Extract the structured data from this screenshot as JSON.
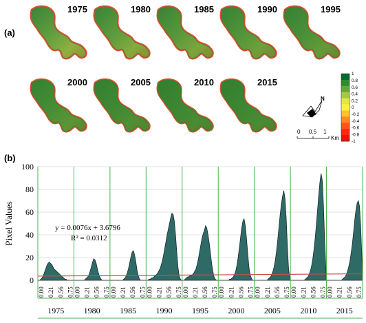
{
  "panel_a": {
    "label": "(a)",
    "maps": [
      {
        "year": "1975"
      },
      {
        "year": "1980"
      },
      {
        "year": "1985"
      },
      {
        "year": "1990"
      },
      {
        "year": "1995"
      },
      {
        "year": "2000"
      },
      {
        "year": "2005"
      },
      {
        "year": "2010"
      },
      {
        "year": "2015"
      }
    ],
    "colorbar": {
      "ticks": [
        "1",
        "0.8",
        "0.6",
        "0.4",
        "0.2",
        "0",
        "-0.2",
        "-0.4",
        "-0.6",
        "-0.8",
        "-1"
      ],
      "colors": [
        "#006b2a",
        "#2e8b30",
        "#63a83a",
        "#a6c942",
        "#e2e646",
        "#fff244",
        "#ffc032",
        "#ff8a22",
        "#ff5418",
        "#ff2810",
        "#e8140a"
      ]
    },
    "north_label": "N",
    "scale_bar": {
      "ticks": [
        "0",
        "0.5",
        "1"
      ],
      "unit": "Km"
    }
  },
  "chart_data": {
    "panel_label": "(b)",
    "type": "area",
    "ylabel": "Pixel Values",
    "ylim": [
      0,
      100
    ],
    "yticks": [
      "0",
      "20",
      "40",
      "60",
      "80",
      "100"
    ],
    "grid": true,
    "xtick_labels": [
      "0.00",
      "0.21",
      "0.56",
      "0.75"
    ],
    "groups": [
      "1975",
      "1980",
      "1985",
      "1990",
      "1995",
      "2000",
      "2005",
      "2010",
      "2015"
    ],
    "series": [
      {
        "group": "1975",
        "values": [
          0,
          0,
          1,
          2,
          4,
          7,
          10,
          13,
          15,
          16,
          15,
          14,
          12,
          10,
          9,
          8,
          7,
          6,
          5,
          4,
          3,
          2,
          1,
          1,
          0,
          0,
          0,
          0,
          0,
          0
        ]
      },
      {
        "group": "1980",
        "values": [
          0,
          0,
          0,
          0,
          0,
          0,
          0,
          0,
          0,
          1,
          2,
          3,
          5,
          8,
          12,
          16,
          19,
          18,
          15,
          10,
          6,
          3,
          1,
          0,
          0,
          0,
          0,
          0,
          0,
          0
        ]
      },
      {
        "group": "1985",
        "values": [
          0,
          0,
          0,
          0,
          0,
          0,
          0,
          0,
          0,
          0,
          0,
          1,
          2,
          4,
          7,
          11,
          16,
          21,
          25,
          26,
          22,
          16,
          9,
          4,
          1,
          0,
          0,
          0,
          0,
          0
        ]
      },
      {
        "group": "1990",
        "values": [
          0,
          0,
          1,
          1,
          2,
          2,
          3,
          4,
          5,
          6,
          8,
          10,
          13,
          17,
          22,
          28,
          34,
          40,
          45,
          50,
          55,
          59,
          58,
          52,
          40,
          25,
          12,
          4,
          1,
          0
        ]
      },
      {
        "group": "1995",
        "values": [
          0,
          0,
          1,
          2,
          3,
          3,
          4,
          4,
          5,
          6,
          8,
          10,
          14,
          19,
          25,
          31,
          37,
          41,
          44,
          48,
          46,
          40,
          33,
          24,
          15,
          8,
          3,
          1,
          0,
          0
        ]
      },
      {
        "group": "2000",
        "values": [
          0,
          0,
          0,
          0,
          0,
          0,
          0,
          0,
          0,
          1,
          1,
          2,
          3,
          5,
          8,
          13,
          20,
          28,
          37,
          46,
          52,
          54,
          48,
          37,
          24,
          12,
          5,
          2,
          0,
          0
        ]
      },
      {
        "group": "2005",
        "values": [
          0,
          0,
          0,
          0,
          0,
          0,
          0,
          0,
          0,
          0,
          0,
          1,
          2,
          3,
          5,
          8,
          12,
          18,
          26,
          36,
          47,
          58,
          67,
          74,
          79,
          72,
          55,
          30,
          10,
          2
        ]
      },
      {
        "group": "2010",
        "values": [
          0,
          0,
          0,
          0,
          0,
          0,
          0,
          0,
          0,
          0,
          0,
          0,
          1,
          2,
          3,
          5,
          8,
          12,
          18,
          26,
          36,
          48,
          61,
          74,
          86,
          94,
          88,
          66,
          35,
          10
        ]
      },
      {
        "group": "2015",
        "values": [
          0,
          0,
          0,
          0,
          0,
          0,
          0,
          0,
          0,
          0,
          0,
          0,
          0,
          1,
          2,
          3,
          5,
          8,
          12,
          17,
          24,
          32,
          42,
          53,
          62,
          68,
          70,
          65,
          46,
          18
        ]
      }
    ],
    "trendline": {
      "slope": 0.0076,
      "intercept": 3.6796
    },
    "equation_text": "y = 0.0076x + 3.6796",
    "r2_text": "R² = 0.0312",
    "colors": {
      "fill": "#2f6b66",
      "stroke": "#1a2b2a",
      "trend": "#c0504d",
      "group_border": "#4caf50",
      "grid": "#d9d9d9"
    }
  }
}
